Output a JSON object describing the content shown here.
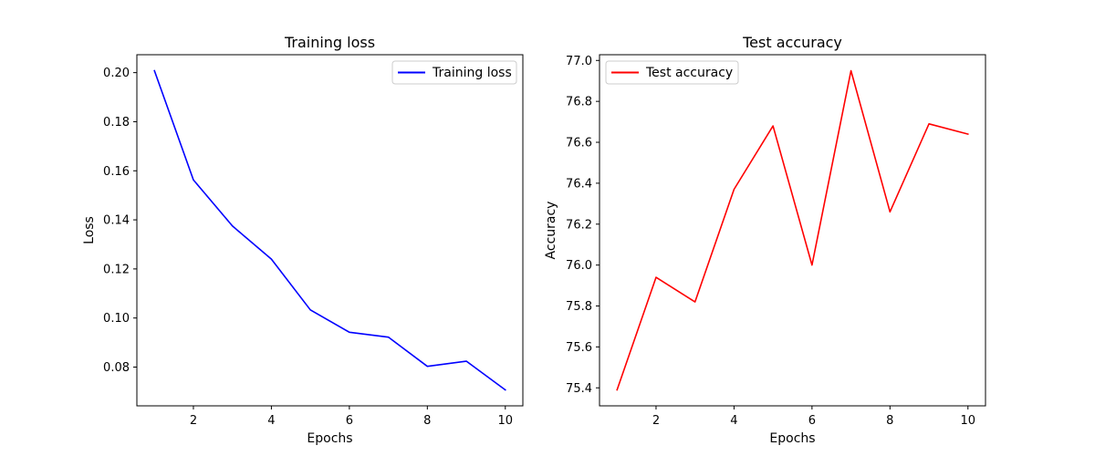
{
  "chart_data": [
    {
      "type": "line",
      "title": "Training loss",
      "xlabel": "Epochs",
      "ylabel": "Loss",
      "x": [
        1,
        2,
        3,
        4,
        5,
        6,
        7,
        8,
        9,
        10
      ],
      "series": [
        {
          "name": "Training loss",
          "color": "#0000ff",
          "values": [
            0.2008,
            0.1563,
            0.1375,
            0.124,
            0.1033,
            0.0942,
            0.0922,
            0.0803,
            0.0824,
            0.0707
          ]
        }
      ],
      "xlim": [
        0.55,
        10.45
      ],
      "ylim": [
        0.0642,
        0.2073
      ],
      "xticks": [
        2,
        4,
        6,
        8,
        10
      ],
      "yticks": [
        0.08,
        0.1,
        0.12,
        0.14,
        0.16,
        0.18,
        0.2
      ],
      "ytick_labels": [
        "0.08",
        "0.10",
        "0.12",
        "0.14",
        "0.16",
        "0.18",
        "0.20"
      ],
      "legend": "upper right",
      "grid": false
    },
    {
      "type": "line",
      "title": "Test accuracy",
      "xlabel": "Epochs",
      "ylabel": "Accuracy",
      "x": [
        1,
        2,
        3,
        4,
        5,
        6,
        7,
        8,
        9,
        10
      ],
      "series": [
        {
          "name": "Test accuracy",
          "color": "#ff0000",
          "values": [
            75.39,
            75.94,
            75.82,
            76.37,
            76.68,
            76.0,
            76.95,
            76.26,
            76.69,
            76.64
          ]
        }
      ],
      "xlim": [
        0.55,
        10.45
      ],
      "ylim": [
        75.312,
        77.028
      ],
      "xticks": [
        2,
        4,
        6,
        8,
        10
      ],
      "yticks": [
        75.4,
        75.6,
        75.8,
        76.0,
        76.2,
        76.4,
        76.6,
        76.8,
        77.0
      ],
      "ytick_labels": [
        "75.4",
        "75.6",
        "75.8",
        "76.0",
        "76.2",
        "76.4",
        "76.6",
        "76.8",
        "77.0"
      ],
      "legend": "upper left",
      "grid": false
    }
  ]
}
